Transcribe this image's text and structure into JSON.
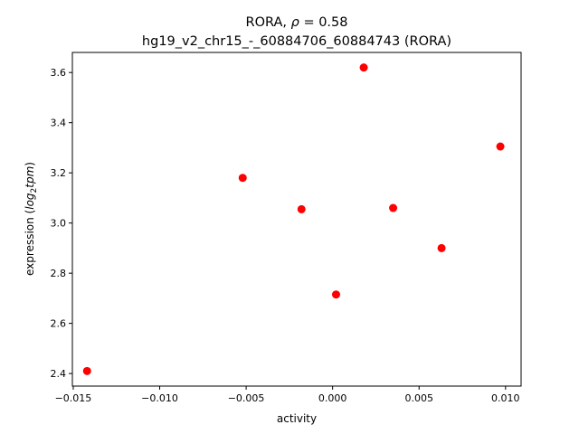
{
  "chart_data": {
    "type": "scatter",
    "title_line1_prefix": "RORA, ",
    "title_line1_rho": "ρ",
    "title_line1_suffix": " = 0.58",
    "title_line2": "hg19_v2_chr15_-_60884706_60884743 (RORA)",
    "xlabel": "activity",
    "ylabel_prefix": "expression (",
    "ylabel_log": "log",
    "ylabel_sub": "2",
    "ylabel_tpm": "tpm",
    "ylabel_suffix": ")",
    "xlim": [
      -0.01505,
      0.0109
    ],
    "ylim": [
      2.35,
      3.68
    ],
    "xticks": [
      -0.015,
      -0.01,
      -0.005,
      0.0,
      0.005,
      0.01
    ],
    "xtick_labels": [
      "−0.015",
      "−0.010",
      "−0.005",
      "0.000",
      "0.005",
      "0.010"
    ],
    "yticks": [
      2.4,
      2.6,
      2.8,
      3.0,
      3.2,
      3.4,
      3.6
    ],
    "ytick_labels": [
      "2.4",
      "2.6",
      "2.8",
      "3.0",
      "3.2",
      "3.4",
      "3.6"
    ],
    "marker_color": "#ff0000",
    "grid": false,
    "points": [
      {
        "x": -0.0142,
        "y": 2.41
      },
      {
        "x": -0.0052,
        "y": 3.18
      },
      {
        "x": -0.0018,
        "y": 3.055
      },
      {
        "x": 0.0002,
        "y": 2.715
      },
      {
        "x": 0.0018,
        "y": 3.62
      },
      {
        "x": 0.0035,
        "y": 3.06
      },
      {
        "x": 0.0063,
        "y": 2.9
      },
      {
        "x": 0.0097,
        "y": 3.305
      }
    ]
  }
}
